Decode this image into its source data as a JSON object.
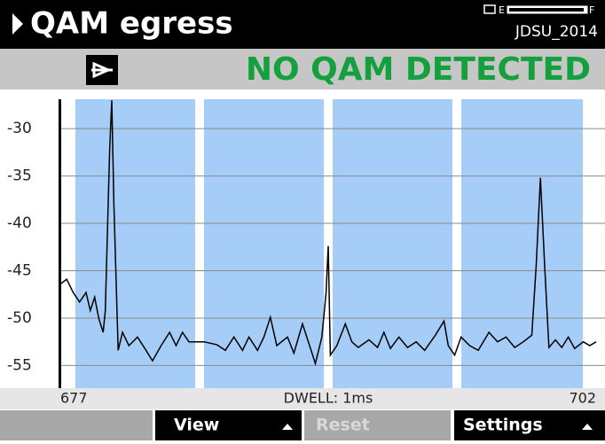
{
  "header": {
    "title": "QAM egress",
    "battery_empty": "E",
    "battery_full": "F",
    "device": "JDSU_2014"
  },
  "status": {
    "message": "NO QAM DETECTED"
  },
  "chart_data": {
    "type": "line",
    "x": [
      677.0,
      677.3,
      677.6,
      677.9,
      678.2,
      678.4,
      678.6,
      678.8,
      679.0,
      679.1,
      679.3,
      679.4,
      679.5,
      679.7,
      679.9,
      680.2,
      680.6,
      681.0,
      681.3,
      681.7,
      682.1,
      682.4,
      682.7,
      683.0,
      683.4,
      683.7,
      684.3,
      684.7,
      685.1,
      685.5,
      685.8,
      686.2,
      686.5,
      686.8,
      687.1,
      687.6,
      687.9,
      688.3,
      688.7,
      688.9,
      689.2,
      689.4,
      689.5,
      689.6,
      689.9,
      690.3,
      690.6,
      690.9,
      691.4,
      691.8,
      692.1,
      692.4,
      692.8,
      693.2,
      693.6,
      694.0,
      694.5,
      694.9,
      695.1,
      695.4,
      695.7,
      696.1,
      696.5,
      697.0,
      697.4,
      697.8,
      698.2,
      698.6,
      699.0,
      699.2,
      699.4,
      699.6,
      699.8,
      700.1,
      700.4,
      700.7,
      701.0,
      701.4,
      701.7,
      702.0
    ],
    "values": [
      -46.4,
      -45.9,
      -47.3,
      -48.3,
      -47.3,
      -49.2,
      -47.8,
      -50.1,
      -51.5,
      -49.2,
      -32.3,
      -27.0,
      -38.0,
      -53.4,
      -51.5,
      -52.9,
      -52.0,
      -53.4,
      -54.5,
      -52.9,
      -51.5,
      -52.9,
      -51.5,
      -52.5,
      -52.5,
      -52.5,
      -52.8,
      -53.4,
      -52.0,
      -53.4,
      -52.0,
      -53.4,
      -52.0,
      -49.9,
      -52.9,
      -52.0,
      -53.7,
      -50.6,
      -53.4,
      -54.8,
      -52.0,
      -47.3,
      -42.4,
      -53.9,
      -52.9,
      -50.6,
      -52.5,
      -53.1,
      -52.3,
      -53.1,
      -51.5,
      -53.2,
      -52.0,
      -53.1,
      -52.5,
      -53.4,
      -51.8,
      -50.3,
      -52.9,
      -53.9,
      -52.0,
      -52.9,
      -53.4,
      -51.5,
      -52.5,
      -52.0,
      -53.1,
      -52.5,
      -51.8,
      -44.5,
      -35.2,
      -44.5,
      -53.1,
      -52.3,
      -53.1,
      -52.0,
      -53.2,
      -52.5,
      -52.9,
      -52.5
    ],
    "color": "#000000",
    "xlim": [
      677,
      702
    ],
    "ylim": [
      -57.3,
      -26.9
    ],
    "xticks": [
      677,
      702
    ],
    "yticks": [
      -30,
      -35,
      -40,
      -45,
      -50,
      -55
    ],
    "grid": true,
    "annotation": "DWELL: 1ms"
  },
  "softkeys": [
    {
      "label": "View"
    },
    {
      "label": "Reset"
    },
    {
      "label": "Settings"
    }
  ]
}
